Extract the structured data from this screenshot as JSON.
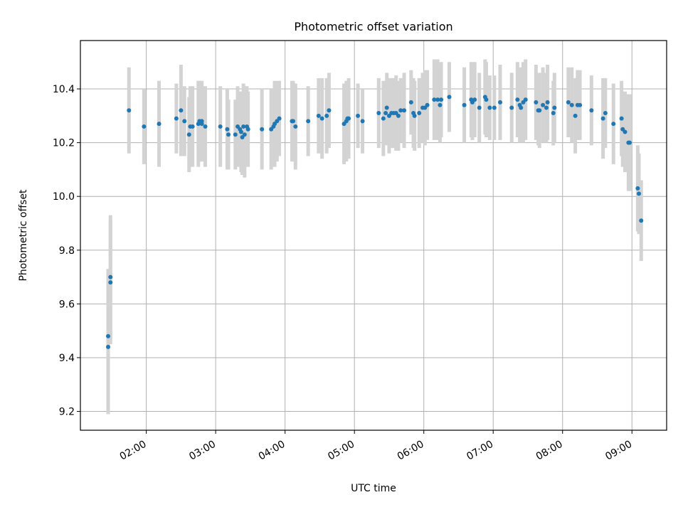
{
  "chart_data": {
    "type": "scatter",
    "title": "Photometric offset variation",
    "xlabel": "UTC time",
    "ylabel": "Photometric offset",
    "grid": true,
    "legend": "none",
    "xlim": [
      "01:03",
      "09:30"
    ],
    "ylim": [
      9.13,
      10.58
    ],
    "x_ticks": [
      "02:00",
      "03:00",
      "04:00",
      "05:00",
      "06:00",
      "07:00",
      "08:00",
      "09:00"
    ],
    "y_ticks": [
      "9.2",
      "9.4",
      "9.6",
      "9.8",
      "10.0",
      "10.2",
      "10.4"
    ],
    "colors": {
      "marker": "#1f77b4",
      "errorbar": "#d3d3d3"
    },
    "series": [
      {
        "x": [
          "01:27",
          "01:27",
          "01:29",
          "01:29",
          "01:45",
          "01:58",
          "02:11",
          "02:26",
          "02:30",
          "02:33",
          "02:37",
          "02:38",
          "02:40",
          "02:45",
          "02:46",
          "02:48",
          "02:48",
          "02:51",
          "03:04",
          "03:10",
          "03:11",
          "03:17",
          "03:19",
          "03:21",
          "03:22",
          "03:23",
          "03:24",
          "03:25",
          "03:27",
          "03:28",
          "03:40",
          "03:48",
          "03:50",
          "03:51",
          "03:53",
          "03:55",
          "04:06",
          "04:07",
          "04:09",
          "04:20",
          "04:29",
          "04:32",
          "04:36",
          "04:38",
          "04:51",
          "04:53",
          "04:54",
          "04:55",
          "05:03",
          "05:07",
          "05:21",
          "05:25",
          "05:27",
          "05:28",
          "05:30",
          "05:32",
          "05:34",
          "05:36",
          "05:38",
          "05:40",
          "05:43",
          "05:49",
          "05:51",
          "05:52",
          "05:56",
          "05:59",
          "06:01",
          "06:03",
          "06:09",
          "06:12",
          "06:14",
          "06:15",
          "06:22",
          "06:35",
          "06:41",
          "06:42",
          "06:44",
          "06:48",
          "06:53",
          "06:54",
          "06:57",
          "07:01",
          "07:06",
          "07:16",
          "07:21",
          "07:23",
          "07:24",
          "07:26",
          "07:28",
          "07:37",
          "07:39",
          "07:40",
          "07:43",
          "07:46",
          "07:47",
          "07:52",
          "07:53",
          "08:05",
          "08:08",
          "08:11",
          "08:13",
          "08:15",
          "08:25",
          "08:35",
          "08:37",
          "08:44",
          "08:51",
          "08:52",
          "08:54",
          "08:57",
          "08:58",
          "09:05",
          "09:06",
          "09:08"
        ],
        "y": [
          9.44,
          9.48,
          9.68,
          9.7,
          10.32,
          10.26,
          10.27,
          10.29,
          10.32,
          10.28,
          10.23,
          10.26,
          10.26,
          10.27,
          10.28,
          10.28,
          10.27,
          10.26,
          10.26,
          10.25,
          10.23,
          10.23,
          10.26,
          10.25,
          10.24,
          10.22,
          10.26,
          10.23,
          10.26,
          10.25,
          10.25,
          10.25,
          10.26,
          10.27,
          10.28,
          10.29,
          10.28,
          10.28,
          10.26,
          10.28,
          10.3,
          10.29,
          10.3,
          10.32,
          10.27,
          10.28,
          10.29,
          10.29,
          10.3,
          10.28,
          10.31,
          10.29,
          10.31,
          10.33,
          10.3,
          10.31,
          10.31,
          10.31,
          10.3,
          10.32,
          10.32,
          10.35,
          10.31,
          10.3,
          10.31,
          10.33,
          10.33,
          10.34,
          10.36,
          10.36,
          10.34,
          10.36,
          10.37,
          10.34,
          10.36,
          10.35,
          10.36,
          10.33,
          10.37,
          10.36,
          10.33,
          10.33,
          10.35,
          10.33,
          10.36,
          10.34,
          10.33,
          10.35,
          10.36,
          10.35,
          10.32,
          10.32,
          10.34,
          10.33,
          10.35,
          10.31,
          10.33,
          10.35,
          10.34,
          10.3,
          10.34,
          10.34,
          10.32,
          10.29,
          10.31,
          10.27,
          10.29,
          10.25,
          10.24,
          10.2,
          10.2,
          10.03,
          10.01,
          9.91
        ],
        "yerr": [
          0.25,
          0.25,
          0.23,
          0.23,
          0.16,
          0.14,
          0.16,
          0.13,
          0.17,
          0.13,
          0.14,
          0.15,
          0.15,
          0.16,
          0.15,
          0.15,
          0.14,
          0.15,
          0.15,
          0.15,
          0.13,
          0.13,
          0.15,
          0.14,
          0.15,
          0.14,
          0.16,
          0.16,
          0.15,
          0.14,
          0.15,
          0.15,
          0.13,
          0.16,
          0.15,
          0.14,
          0.15,
          0.15,
          0.16,
          0.13,
          0.14,
          0.15,
          0.14,
          0.14,
          0.15,
          0.15,
          0.13,
          0.15,
          0.12,
          0.12,
          0.13,
          0.14,
          0.12,
          0.13,
          0.14,
          0.13,
          0.13,
          0.14,
          0.13,
          0.12,
          0.14,
          0.12,
          0.13,
          0.13,
          0.13,
          0.13,
          0.14,
          0.13,
          0.15,
          0.15,
          0.14,
          0.14,
          0.13,
          0.14,
          0.14,
          0.14,
          0.14,
          0.13,
          0.14,
          0.14,
          0.12,
          0.12,
          0.14,
          0.13,
          0.14,
          0.14,
          0.13,
          0.15,
          0.15,
          0.14,
          0.13,
          0.14,
          0.14,
          0.13,
          0.14,
          0.12,
          0.13,
          0.13,
          0.14,
          0.14,
          0.13,
          0.13,
          0.13,
          0.15,
          0.13,
          0.15,
          0.14,
          0.14,
          0.15,
          0.18,
          0.18,
          0.16,
          0.15,
          0.15
        ]
      }
    ]
  }
}
